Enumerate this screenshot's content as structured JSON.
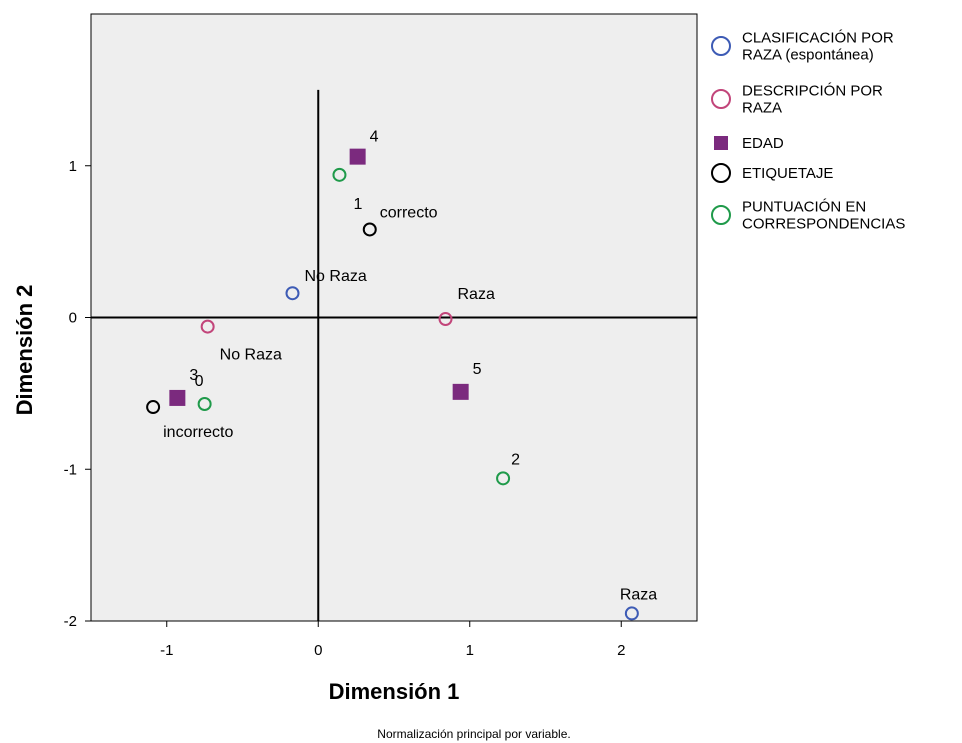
{
  "chart_data": {
    "type": "scatter",
    "xlabel": "Dimensión 1",
    "ylabel": "Dimensión 2",
    "footnote": "Normalización principal por variable.",
    "xlim": [
      -1.5,
      2.5
    ],
    "ylim": [
      -2.0,
      2.0
    ],
    "xticks": [
      -1,
      0,
      1,
      2
    ],
    "yticks": [
      -2,
      -1,
      0,
      1
    ],
    "grid": false,
    "legend_position": "right",
    "series": [
      {
        "name": "CLASIFICACIÓN POR RAZA (espontánea)",
        "legend_lines": [
          "CLASIFICACIÓN POR",
          "RAZA (espontánea)"
        ],
        "marker": "circle-open",
        "color": "#3d5bb5",
        "points": [
          {
            "x": -0.17,
            "y": 0.16,
            "label": "No Raza"
          },
          {
            "x": 2.07,
            "y": -1.95,
            "label": "Raza"
          }
        ]
      },
      {
        "name": "DESCRIPCIÓN POR RAZA",
        "legend_lines": [
          "DESCRIPCIÓN POR",
          "RAZA"
        ],
        "marker": "circle-open",
        "color": "#c2457a",
        "points": [
          {
            "x": -0.73,
            "y": -0.06,
            "label": "No Raza"
          },
          {
            "x": 0.84,
            "y": -0.01,
            "label": "Raza"
          }
        ]
      },
      {
        "name": "EDAD",
        "legend_lines": [
          "EDAD"
        ],
        "marker": "square-filled",
        "color": "#7b2a7e",
        "points": [
          {
            "x": 0.26,
            "y": 1.06,
            "label": "4"
          },
          {
            "x": -0.93,
            "y": -0.53,
            "label": "3"
          },
          {
            "x": 0.94,
            "y": -0.49,
            "label": "5"
          }
        ]
      },
      {
        "name": "ETIQUETAJE",
        "legend_lines": [
          "ETIQUETAJE"
        ],
        "marker": "circle-open",
        "color": "#000000",
        "points": [
          {
            "x": 0.34,
            "y": 0.58,
            "label": "correcto"
          },
          {
            "x": -1.09,
            "y": -0.59,
            "label": "incorrecto"
          }
        ]
      },
      {
        "name": "PUNTUACIÓN EN CORRESPONDENCIAS",
        "legend_lines": [
          "PUNTUACIÓN EN",
          "CORRESPONDENCIAS"
        ],
        "marker": "circle-open",
        "color": "#1f9a4a",
        "points": [
          {
            "x": 0.14,
            "y": 0.94,
            "label": "1"
          },
          {
            "x": -0.75,
            "y": -0.57,
            "label": "0"
          },
          {
            "x": 1.22,
            "y": -1.06,
            "label": "2"
          }
        ]
      }
    ]
  }
}
